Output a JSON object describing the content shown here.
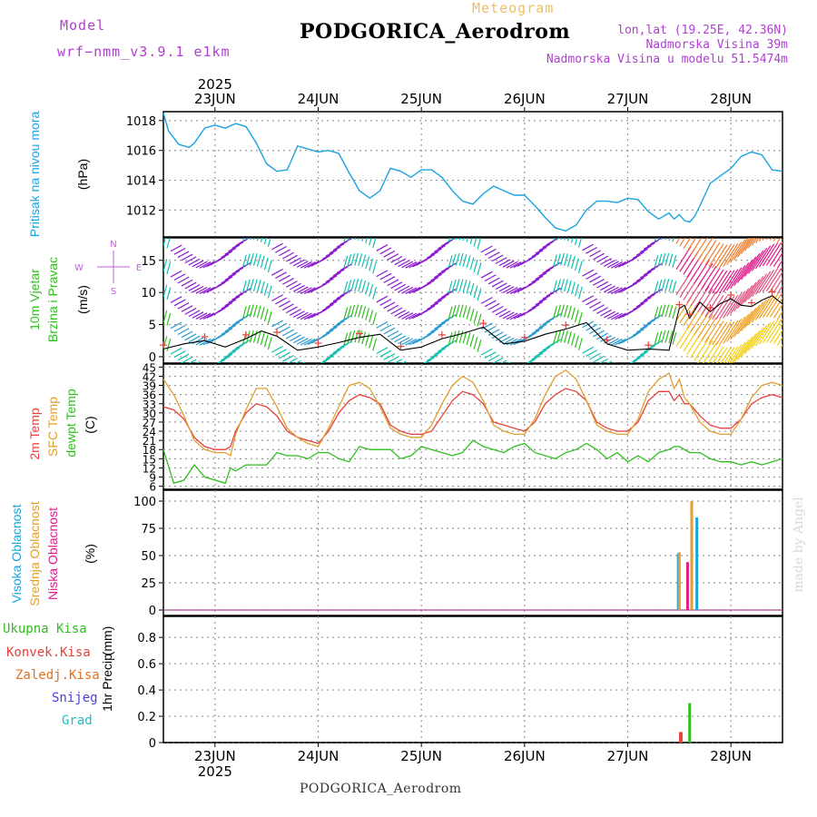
{
  "header": {
    "model_label": "Model",
    "model_name": "wrf−nmm_v3.9.1  e1km",
    "meteogram": "Meteogram",
    "station": "PODGORICA_Aerodrom",
    "lonlat": "lon,lat (19.25E, 42.36N)",
    "elevation": "Nadmorska Visina 39m",
    "model_elevation": "Nadmorska Visina u modelu 51.5474m",
    "bottom_title": "PODGORICA_Aerodrom",
    "watermark": "made by Angel",
    "year": "2025"
  },
  "colors": {
    "pressure": "#1aa3e0",
    "temp2m": "#e8403c",
    "sfc": "#e0a030",
    "dewpt": "#2fbf1f",
    "cloud_high": "#1aa3e0",
    "cloud_mid": "#e0a030",
    "cloud_low": "#e01a8a",
    "precip_total": "#2fbf1f",
    "precip_conv": "#e8403c",
    "precip_grid": "#e07020",
    "precip_snow": "#4a40e0",
    "precip_grad": "#20c0c0",
    "wind_purple": "#8a1ad0",
    "wind_teal": "#10c0b0",
    "wind_magenta": "#e01a8a",
    "wind_yellow": "#f0d010"
  },
  "panels": [
    {
      "id": "pressure",
      "labels": [
        "Pritisak na nivou mora"
      ],
      "label_colors": [
        "#1aa3e0"
      ],
      "unit": "(hPa)",
      "yticks": [
        "1012",
        "1014",
        "1016",
        "1018"
      ]
    },
    {
      "id": "wind",
      "labels": [
        "10m Vjetar",
        "Brzina i Pravac"
      ],
      "label_colors": [
        "#2fbf1f",
        "#2fbf1f"
      ],
      "unit": "(m/s)",
      "yticks": [
        "0",
        "5",
        "10",
        "15"
      ],
      "compass": {
        "n": "N",
        "s": "S",
        "e": "E",
        "w": "W"
      }
    },
    {
      "id": "temp",
      "labels": [
        "2m Temp",
        "SFC Temp",
        "dewpt Temp"
      ],
      "label_colors": [
        "#e8403c",
        "#e0a030",
        "#2fbf1f"
      ],
      "unit": "(C)",
      "yticks": [
        "6",
        "9",
        "12",
        "15",
        "18",
        "21",
        "24",
        "27",
        "30",
        "33",
        "36",
        "39",
        "42",
        "45"
      ]
    },
    {
      "id": "cloud",
      "labels": [
        "Visoka Oblacnost",
        "Srednja Oblacnost",
        "Niska Oblacnost"
      ],
      "label_colors": [
        "#1aa3e0",
        "#e0a030",
        "#e01a8a"
      ],
      "unit": "(%)",
      "yticks": [
        "0",
        "25",
        "50",
        "75",
        "100"
      ]
    },
    {
      "id": "precip",
      "labels": [
        "1hr Precip"
      ],
      "label_colors": [
        "#000000"
      ],
      "unit": "(mm)",
      "yticks": [
        "0",
        "0.2",
        "0.4",
        "0.6",
        "0.8"
      ]
    }
  ],
  "precip_legend": [
    {
      "label": "Ukupna Kisa",
      "color": "#2fbf1f"
    },
    {
      "label": "Konvek.Kisa",
      "color": "#e8403c"
    },
    {
      "label": "Zaledj.Kisa",
      "color": "#e07020"
    },
    {
      "label": "Snijeg",
      "color": "#4a40e0"
    },
    {
      "label": "Grad",
      "color": "#20c0c0"
    }
  ],
  "chart_data": [
    {
      "type": "line",
      "name": "pressure",
      "title": "Pritisak na nivou mora",
      "ylabel": "(hPa)",
      "x_categories": [
        "23JUN",
        "24JUN",
        "25JUN",
        "26JUN",
        "27JUN",
        "28JUN"
      ],
      "x_range_days": [
        22.5,
        28.5
      ],
      "ylim": [
        1010.2,
        1018.6
      ],
      "series": [
        {
          "name": "pressure",
          "x": [
            22.5,
            22.55,
            22.65,
            22.75,
            22.8,
            22.9,
            23.0,
            23.1,
            23.2,
            23.3,
            23.4,
            23.5,
            23.6,
            23.7,
            23.8,
            23.9,
            24.0,
            24.1,
            24.2,
            24.3,
            24.4,
            24.5,
            24.6,
            24.7,
            24.8,
            24.9,
            25.0,
            25.1,
            25.2,
            25.3,
            25.4,
            25.5,
            25.6,
            25.7,
            25.8,
            25.9,
            26.0,
            26.1,
            26.2,
            26.3,
            26.4,
            26.5,
            26.6,
            26.7,
            26.8,
            26.9,
            27.0,
            27.1,
            27.2,
            27.3,
            27.4,
            27.45,
            27.5,
            27.55,
            27.6,
            27.65,
            27.7,
            27.8,
            27.9,
            28.0,
            28.1,
            28.2,
            28.3,
            28.4,
            28.5
          ],
          "y": [
            1018.5,
            1017.3,
            1016.4,
            1016.2,
            1016.5,
            1017.5,
            1017.7,
            1017.5,
            1017.8,
            1017.6,
            1016.5,
            1015.1,
            1014.6,
            1014.7,
            1016.3,
            1016.1,
            1015.9,
            1016.0,
            1015.8,
            1014.5,
            1013.3,
            1012.8,
            1013.3,
            1014.8,
            1014.6,
            1014.2,
            1014.7,
            1014.7,
            1014.2,
            1013.3,
            1012.6,
            1012.4,
            1013.1,
            1013.6,
            1013.3,
            1013.0,
            1013.0,
            1012.3,
            1011.5,
            1010.8,
            1010.6,
            1011.0,
            1012.0,
            1012.6,
            1012.6,
            1012.5,
            1012.8,
            1012.7,
            1011.9,
            1011.4,
            1011.8,
            1011.4,
            1011.7,
            1011.3,
            1011.2,
            1011.6,
            1012.3,
            1013.8,
            1014.3,
            1014.8,
            1015.6,
            1015.9,
            1015.7,
            1014.7,
            1014.6
          ]
        }
      ]
    },
    {
      "type": "line",
      "name": "wind",
      "title": "10m Vjetar Brzina i Pravac",
      "ylabel": "(m/s)",
      "ylim": [
        -1,
        18.5
      ],
      "series": [
        {
          "name": "speed",
          "x": [
            22.5,
            22.7,
            22.9,
            23.1,
            23.3,
            23.45,
            23.6,
            23.8,
            24.0,
            24.2,
            24.4,
            24.6,
            24.8,
            25.0,
            25.2,
            25.4,
            25.6,
            25.8,
            26.0,
            26.2,
            26.4,
            26.6,
            26.8,
            27.0,
            27.2,
            27.4,
            27.5,
            27.55,
            27.6,
            27.7,
            27.8,
            27.9,
            28.0,
            28.1,
            28.2,
            28.3,
            28.4,
            28.5
          ],
          "y": [
            1.2,
            2.0,
            2.5,
            1.5,
            2.8,
            4.0,
            3.2,
            1.0,
            1.5,
            2.2,
            3.0,
            3.5,
            1.0,
            1.5,
            2.8,
            3.6,
            4.6,
            2.0,
            2.4,
            3.5,
            4.3,
            5.3,
            2.0,
            1.0,
            1.2,
            1.0,
            7.5,
            8.0,
            6.0,
            8.5,
            7.0,
            8.3,
            9.0,
            8.0,
            7.8,
            8.8,
            9.5,
            8.2
          ]
        }
      ]
    },
    {
      "type": "line",
      "name": "temperature",
      "title": "2m Temp / SFC Temp / dewpt Temp",
      "ylabel": "(C)",
      "ylim": [
        5,
        46
      ],
      "x": [
        22.5,
        22.6,
        22.7,
        22.8,
        22.9,
        23.0,
        23.1,
        23.15,
        23.2,
        23.3,
        23.4,
        23.5,
        23.6,
        23.7,
        23.8,
        23.9,
        24.0,
        24.1,
        24.2,
        24.3,
        24.4,
        24.5,
        24.6,
        24.7,
        24.8,
        24.9,
        25.0,
        25.1,
        25.2,
        25.3,
        25.4,
        25.5,
        25.6,
        25.7,
        25.8,
        25.9,
        26.0,
        26.1,
        26.2,
        26.3,
        26.4,
        26.5,
        26.6,
        26.7,
        26.8,
        26.9,
        27.0,
        27.1,
        27.2,
        27.3,
        27.4,
        27.45,
        27.5,
        27.55,
        27.6,
        27.7,
        27.8,
        27.9,
        28.0,
        28.1,
        28.2,
        28.3,
        28.4,
        28.5
      ],
      "series": [
        {
          "name": "2m Temp",
          "y": [
            32,
            31,
            28,
            22,
            19,
            18,
            18,
            19,
            24,
            30,
            33,
            32,
            29,
            24,
            22,
            21,
            20,
            24,
            30,
            34,
            36,
            35,
            33,
            26,
            24,
            23,
            23,
            24,
            29,
            34,
            37,
            36,
            33,
            27,
            26,
            25,
            24,
            27,
            33,
            36,
            38,
            37,
            34,
            27,
            25,
            24,
            24,
            27,
            34,
            37,
            37,
            34,
            36,
            33,
            33,
            29,
            26,
            25,
            25,
            28,
            33,
            35,
            36,
            35
          ]
        },
        {
          "name": "SFC Temp",
          "y": [
            41,
            36,
            29,
            21,
            18,
            17,
            17,
            16,
            23,
            31,
            38,
            38,
            32,
            25,
            22,
            20,
            19,
            25,
            32,
            39,
            40,
            38,
            32,
            25,
            23,
            22,
            22,
            26,
            33,
            39,
            42,
            40,
            34,
            26,
            24,
            23,
            23,
            28,
            36,
            42,
            44,
            41,
            34,
            26,
            24,
            23,
            23,
            28,
            37,
            41,
            43,
            38,
            41,
            35,
            33,
            27,
            24,
            23,
            23,
            28,
            35,
            39,
            40,
            39
          ]
        },
        {
          "name": "dewpt Temp",
          "y": [
            18,
            7,
            8,
            13,
            9,
            8,
            7,
            12,
            11,
            13,
            13,
            13,
            17,
            16,
            16,
            15,
            17,
            17,
            15,
            14,
            19,
            18,
            18,
            18,
            15,
            16,
            19,
            18,
            17,
            16,
            17,
            21,
            19,
            18,
            17,
            19,
            20,
            17,
            16,
            15,
            17,
            18,
            20,
            18,
            15,
            17,
            14,
            16,
            14,
            17,
            18,
            19,
            19,
            18,
            17,
            17,
            15,
            14,
            14,
            13,
            14,
            13,
            14,
            15
          ]
        }
      ]
    },
    {
      "type": "bar",
      "name": "cloud",
      "title": "Visoka / Srednja / Niska Oblacnost",
      "ylabel": "(%)",
      "ylim": [
        -5,
        110
      ],
      "series": [
        {
          "name": "Visoka Oblacnost",
          "x": [
            27.49,
            27.67
          ],
          "values": [
            52,
            85
          ]
        },
        {
          "name": "Srednja Oblacnost",
          "x": [
            27.5,
            27.62
          ],
          "values": [
            53,
            100
          ]
        },
        {
          "name": "Niska Oblacnost",
          "x": [
            27.58
          ],
          "values": [
            44
          ]
        }
      ]
    },
    {
      "type": "bar",
      "name": "precip",
      "title": "1hr Precip",
      "ylabel": "(mm)",
      "ylim": [
        0,
        0.96
      ],
      "series": [
        {
          "name": "Ukupna Kisa",
          "x": [
            27.52,
            27.6
          ],
          "values": [
            0.08,
            0.3
          ]
        },
        {
          "name": "Konvek.Kisa",
          "x": [
            27.51
          ],
          "values": [
            0.08
          ]
        }
      ]
    }
  ]
}
